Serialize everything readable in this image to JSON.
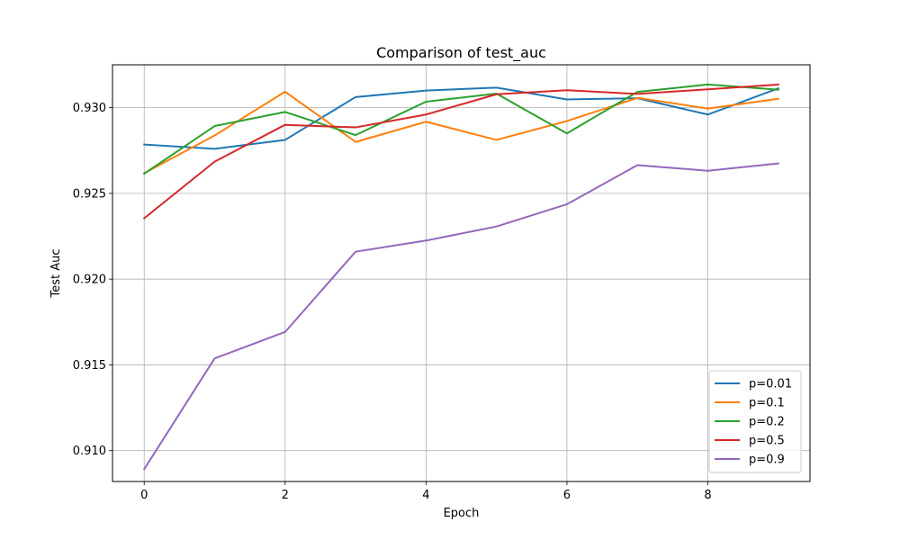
{
  "chart_data": {
    "type": "line",
    "title": "Comparison of test_auc",
    "xlabel": "Epoch",
    "ylabel": "Test Auc",
    "xlim": [
      -0.45,
      9.45
    ],
    "ylim": [
      0.9082,
      0.9325
    ],
    "xticks": [
      0,
      2,
      4,
      6,
      8
    ],
    "xtick_labels": [
      "0",
      "2",
      "4",
      "6",
      "8"
    ],
    "yticks": [
      0.91,
      0.915,
      0.92,
      0.925,
      0.93
    ],
    "ytick_labels": [
      "0.910",
      "0.915",
      "0.920",
      "0.925",
      "0.930"
    ],
    "grid": true,
    "legend_position": "bottom-right",
    "x": [
      0,
      1,
      2,
      3,
      4,
      5,
      6,
      7,
      8,
      9
    ],
    "series": [
      {
        "name": "p=0.01",
        "color": "#1f77b4",
        "values": [
          0.92785,
          0.9276,
          0.92812,
          0.93062,
          0.931,
          0.93117,
          0.93048,
          0.93055,
          0.9296,
          0.93113
        ]
      },
      {
        "name": "p=0.1",
        "color": "#ff7f0e",
        "values": [
          0.92618,
          0.92838,
          0.93093,
          0.928,
          0.92918,
          0.92812,
          0.92922,
          0.93057,
          0.92995,
          0.93052
        ]
      },
      {
        "name": "p=0.2",
        "color": "#2ca02c",
        "values": [
          0.92615,
          0.92893,
          0.92975,
          0.9284,
          0.93035,
          0.93082,
          0.9285,
          0.93092,
          0.93135,
          0.93105
        ]
      },
      {
        "name": "p=0.5",
        "color": "#d62728",
        "values": [
          0.92355,
          0.92685,
          0.929,
          0.92885,
          0.9296,
          0.93078,
          0.93102,
          0.9308,
          0.93107,
          0.93135
        ]
      },
      {
        "name": "p=0.9",
        "color": "#9467bd",
        "values": [
          0.90892,
          0.91538,
          0.91692,
          0.9216,
          0.92225,
          0.92307,
          0.92437,
          0.92665,
          0.92632,
          0.92675
        ]
      }
    ]
  }
}
